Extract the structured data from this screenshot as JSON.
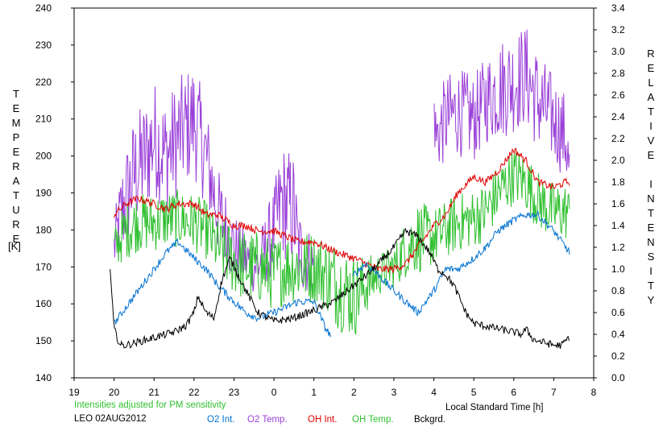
{
  "chart_data": {
    "type": "line",
    "xlabel": "Local Standard Time [h]",
    "ylabel_left": "TEMPERATURE",
    "ylabel_left_unit": "[K]",
    "ylabel_right": "RELATIVE INTENSITY",
    "xlim": [
      19,
      32
    ],
    "x_tick_labels": [
      "19",
      "20",
      "21",
      "22",
      "23",
      "0",
      "1",
      "2",
      "3",
      "4",
      "5",
      "6",
      "7",
      "8"
    ],
    "ylim_left": [
      140,
      240
    ],
    "y_left_ticks": [
      140,
      150,
      160,
      170,
      180,
      190,
      200,
      210,
      220,
      230,
      240
    ],
    "ylim_right": [
      0.0,
      3.4
    ],
    "y_right_ticks": [
      "0.0",
      "0.2",
      "0.4",
      "0.6",
      "0.8",
      "1.0",
      "1.2",
      "1.4",
      "1.6",
      "1.8",
      "2.0",
      "2.2",
      "2.4",
      "2.6",
      "2.8",
      "3.0",
      "3.2",
      "3.4"
    ],
    "grid": false,
    "note": "Intensities adjusted for PM sensitivity",
    "station_label": "LEO 02AUG2012",
    "series": [
      {
        "name": "O2 Int.",
        "color": "#0070d0",
        "axis": "right",
        "x": [
          20.0,
          20.3,
          20.6,
          21.0,
          21.3,
          21.6,
          22.0,
          22.3,
          22.6,
          23.0,
          23.3,
          23.6,
          24.0,
          24.3,
          24.6,
          25.0,
          25.3,
          25.5,
          26.0,
          26.3,
          26.6,
          27.0,
          27.3,
          27.6,
          28.0,
          28.3,
          28.6,
          29.0,
          29.3,
          29.6,
          30.0,
          30.3,
          30.6,
          31.0,
          31.3,
          31.4
        ],
        "y": [
          0.5,
          0.65,
          0.8,
          1.0,
          1.15,
          1.25,
          1.1,
          1.0,
          0.85,
          0.7,
          0.6,
          0.55,
          0.6,
          0.65,
          0.7,
          0.7,
          0.45,
          0.35,
          0.95,
          1.05,
          0.95,
          0.8,
          0.7,
          0.6,
          0.8,
          1.0,
          1.0,
          1.1,
          1.2,
          1.35,
          1.45,
          1.5,
          1.5,
          1.35,
          1.2,
          1.15
        ]
      },
      {
        "name": "O2 Temp.",
        "color": "#9a40d8",
        "axis": "left",
        "x": [
          20.0,
          20.2,
          20.5,
          20.8,
          21.0,
          21.3,
          21.6,
          22.0,
          22.3,
          22.6,
          23.0,
          23.3,
          23.6,
          24.0,
          24.2,
          24.5,
          24.6,
          25.0,
          25.5,
          26.0,
          26.5,
          27.0,
          28.0,
          28.05,
          28.3,
          28.6,
          29.0,
          29.3,
          29.6,
          30.0,
          30.3,
          30.6,
          31.0,
          31.3,
          31.4
        ],
        "y": [
          175,
          185,
          195,
          200,
          205,
          200,
          205,
          210,
          200,
          185,
          175,
          172,
          170,
          180,
          188,
          185,
          175,
          170,
          170,
          168,
          170,
          172,
          215,
          205,
          210,
          212,
          210,
          215,
          218,
          220,
          222,
          215,
          210,
          205,
          195
        ],
        "amplitude": [
          8,
          14,
          16,
          16,
          16,
          16,
          16,
          16,
          14,
          12,
          10,
          8,
          8,
          12,
          16,
          16,
          12,
          8,
          8,
          8,
          8,
          8,
          8,
          10,
          12,
          12,
          12,
          12,
          14,
          14,
          14,
          14,
          12,
          12,
          10
        ]
      },
      {
        "name": "OH Int.",
        "color": "#e00000",
        "axis": "right",
        "x": [
          20.0,
          20.3,
          20.6,
          21.0,
          21.3,
          21.6,
          22.0,
          22.3,
          22.6,
          23.0,
          23.3,
          23.6,
          24.0,
          24.3,
          24.6,
          25.0,
          25.3,
          25.6,
          26.0,
          26.3,
          26.6,
          27.0,
          27.3,
          27.6,
          28.0,
          28.3,
          28.6,
          29.0,
          29.3,
          29.6,
          30.0,
          30.3,
          30.6,
          31.0,
          31.3,
          31.4
        ],
        "y": [
          1.5,
          1.6,
          1.65,
          1.6,
          1.55,
          1.6,
          1.6,
          1.5,
          1.5,
          1.4,
          1.4,
          1.35,
          1.35,
          1.3,
          1.25,
          1.25,
          1.2,
          1.15,
          1.1,
          1.05,
          1.0,
          1.0,
          1.05,
          1.2,
          1.4,
          1.5,
          1.7,
          1.85,
          1.8,
          1.9,
          2.1,
          2.0,
          1.8,
          1.75,
          1.8,
          1.8
        ]
      },
      {
        "name": "OH Temp.",
        "color": "#30c030",
        "axis": "left",
        "x": [
          20.0,
          20.3,
          20.6,
          21.0,
          21.3,
          21.6,
          22.0,
          22.3,
          22.6,
          23.0,
          23.3,
          23.6,
          24.0,
          24.3,
          24.6,
          25.0,
          25.3,
          25.6,
          26.0,
          26.3,
          26.6,
          27.0,
          27.3,
          27.6,
          28.0,
          28.3,
          28.6,
          29.0,
          29.3,
          29.6,
          30.0,
          30.3,
          30.6,
          31.0,
          31.3,
          31.4
        ],
        "y": [
          175,
          180,
          182,
          182,
          183,
          183,
          182,
          180,
          175,
          172,
          170,
          170,
          168,
          170,
          170,
          170,
          168,
          165,
          162,
          165,
          168,
          170,
          175,
          178,
          178,
          180,
          182,
          183,
          185,
          190,
          195,
          193,
          188,
          185,
          185,
          185
        ],
        "amplitude": [
          6,
          8,
          8,
          8,
          8,
          8,
          8,
          8,
          8,
          10,
          10,
          10,
          10,
          10,
          10,
          10,
          10,
          12,
          12,
          8,
          6,
          6,
          8,
          10,
          8,
          8,
          8,
          8,
          8,
          8,
          8,
          8,
          8,
          8,
          8,
          6
        ]
      },
      {
        "name": "Bckgrd.",
        "color": "#000000",
        "axis": "right",
        "x": [
          19.9,
          20.0,
          20.15,
          20.3,
          20.6,
          21.0,
          21.5,
          21.8,
          22.0,
          22.1,
          22.3,
          22.5,
          22.7,
          22.9,
          23.3,
          23.6,
          24.0,
          24.5,
          25.0,
          25.5,
          26.0,
          26.5,
          27.0,
          27.3,
          27.6,
          27.9,
          28.1,
          28.3,
          28.5,
          28.8,
          29.0,
          30.0,
          30.2,
          30.3,
          30.5,
          31.0,
          31.2,
          31.4
        ],
        "y": [
          1.0,
          0.45,
          0.3,
          0.3,
          0.33,
          0.37,
          0.42,
          0.48,
          0.6,
          0.75,
          0.6,
          0.55,
          0.9,
          1.1,
          0.8,
          0.6,
          0.52,
          0.55,
          0.62,
          0.7,
          0.85,
          1.0,
          1.2,
          1.35,
          1.3,
          1.15,
          1.0,
          0.95,
          0.85,
          0.6,
          0.5,
          0.42,
          0.4,
          0.45,
          0.35,
          0.3,
          0.3,
          0.38
        ]
      }
    ]
  }
}
